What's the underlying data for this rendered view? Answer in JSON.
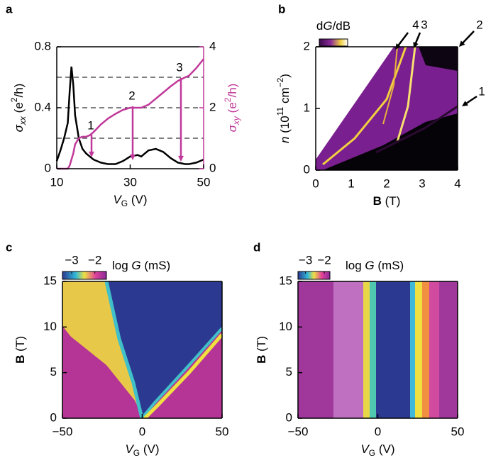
{
  "chart_data": [
    {
      "type": "line",
      "panel_label": "a",
      "x": [
        10,
        11,
        12,
        13,
        13.5,
        14,
        14.5,
        15,
        16,
        17,
        18,
        19,
        20,
        22,
        24,
        26,
        28,
        30,
        32,
        33,
        35,
        37,
        39,
        41,
        43,
        45,
        46,
        48,
        50
      ],
      "xlim": [
        10,
        50
      ],
      "xticks": [
        10,
        30,
        50
      ],
      "xlabel": [
        "V",
        "G",
        " (V)"
      ],
      "ylim": [
        0,
        0.8
      ],
      "yticks": [
        0,
        0.4,
        0.8
      ],
      "ylabel": [
        "σ",
        "xx",
        " (e",
        "2",
        "/h)"
      ],
      "y2lim": [
        0,
        4
      ],
      "y2ticks": [
        0,
        2,
        4
      ],
      "y2label": [
        "σ",
        "xy",
        " (e",
        "2",
        "/h)"
      ],
      "reference_lines": {
        "axis": "y2",
        "values": [
          1,
          2,
          3
        ]
      },
      "annotations": [
        "1",
        "2",
        "3"
      ],
      "series": [
        {
          "color": "#000000",
          "values": [
            0.05,
            0.12,
            0.2,
            0.3,
            0.5,
            0.67,
            0.55,
            0.35,
            0.2,
            0.13,
            0.1,
            0.08,
            0.06,
            0.04,
            0.03,
            0.03,
            0.05,
            0.08,
            0.09,
            0.08,
            0.12,
            0.13,
            0.11,
            0.07,
            0.04,
            0.03,
            0.03,
            0.04,
            0.06
          ]
        },
        {
          "color": "#c0399a",
          "axis": "y2",
          "values": [
            0,
            0,
            0,
            0,
            0.1,
            0.3,
            0.5,
            0.8,
            1.0,
            1.05,
            1.05,
            1.1,
            1.2,
            1.45,
            1.65,
            1.8,
            1.93,
            2.0,
            2.0,
            2.0,
            2.1,
            2.3,
            2.5,
            2.7,
            2.88,
            3.0,
            3.05,
            3.3,
            3.6
          ]
        }
      ]
    },
    {
      "type": "heatmap",
      "panel_label": "b",
      "xlim": [
        0,
        4
      ],
      "xticks": [
        0,
        1,
        2,
        3,
        4
      ],
      "xlabel": [
        "B",
        " (T)"
      ],
      "ylim": [
        0,
        2
      ],
      "yticks": [
        0,
        1,
        2
      ],
      "ylabel": [
        "n",
        " (10",
        "11",
        " cm",
        "−2",
        ")"
      ],
      "colorbar": {
        "label": [
          "d",
          "G",
          "/dB"
        ]
      },
      "annotations": [
        "4",
        "3",
        "2",
        "1"
      ]
    },
    {
      "type": "heatmap",
      "panel_label": "c",
      "xlim": [
        -50,
        50
      ],
      "xticks": [
        {
          "value": -50,
          "label": "−50"
        },
        0,
        50
      ],
      "xlabel": [
        "V",
        "G",
        " (V)"
      ],
      "ylim": [
        0,
        15
      ],
      "yticks": [
        0,
        5,
        10,
        15
      ],
      "ylabel": [
        "B",
        " (T)"
      ],
      "colorbar": {
        "label": [
          "log ",
          "G",
          " (mS)"
        ],
        "lim": [
          -3.4,
          -1.5
        ],
        "ticks": [
          {
            "value": -3,
            "label": "−3"
          },
          {
            "value": -2,
            "label": "−2"
          }
        ]
      }
    },
    {
      "type": "heatmap",
      "panel_label": "d",
      "xlim": [
        -50,
        50
      ],
      "xticks": [
        {
          "value": -50,
          "label": "−50"
        },
        0,
        50
      ],
      "xlabel": [
        "V",
        "G",
        " (V)"
      ],
      "ylim": [
        0,
        15
      ],
      "yticks": [
        0,
        5,
        10,
        15
      ],
      "ylabel": [
        "B",
        " (T)"
      ],
      "colorbar": {
        "label": [
          "log ",
          "G",
          " (mS)"
        ],
        "lim": [
          -3.4,
          -1.7
        ],
        "ticks": [
          {
            "value": -3,
            "label": "−3"
          },
          {
            "value": -2,
            "label": "−2"
          }
        ]
      }
    }
  ]
}
